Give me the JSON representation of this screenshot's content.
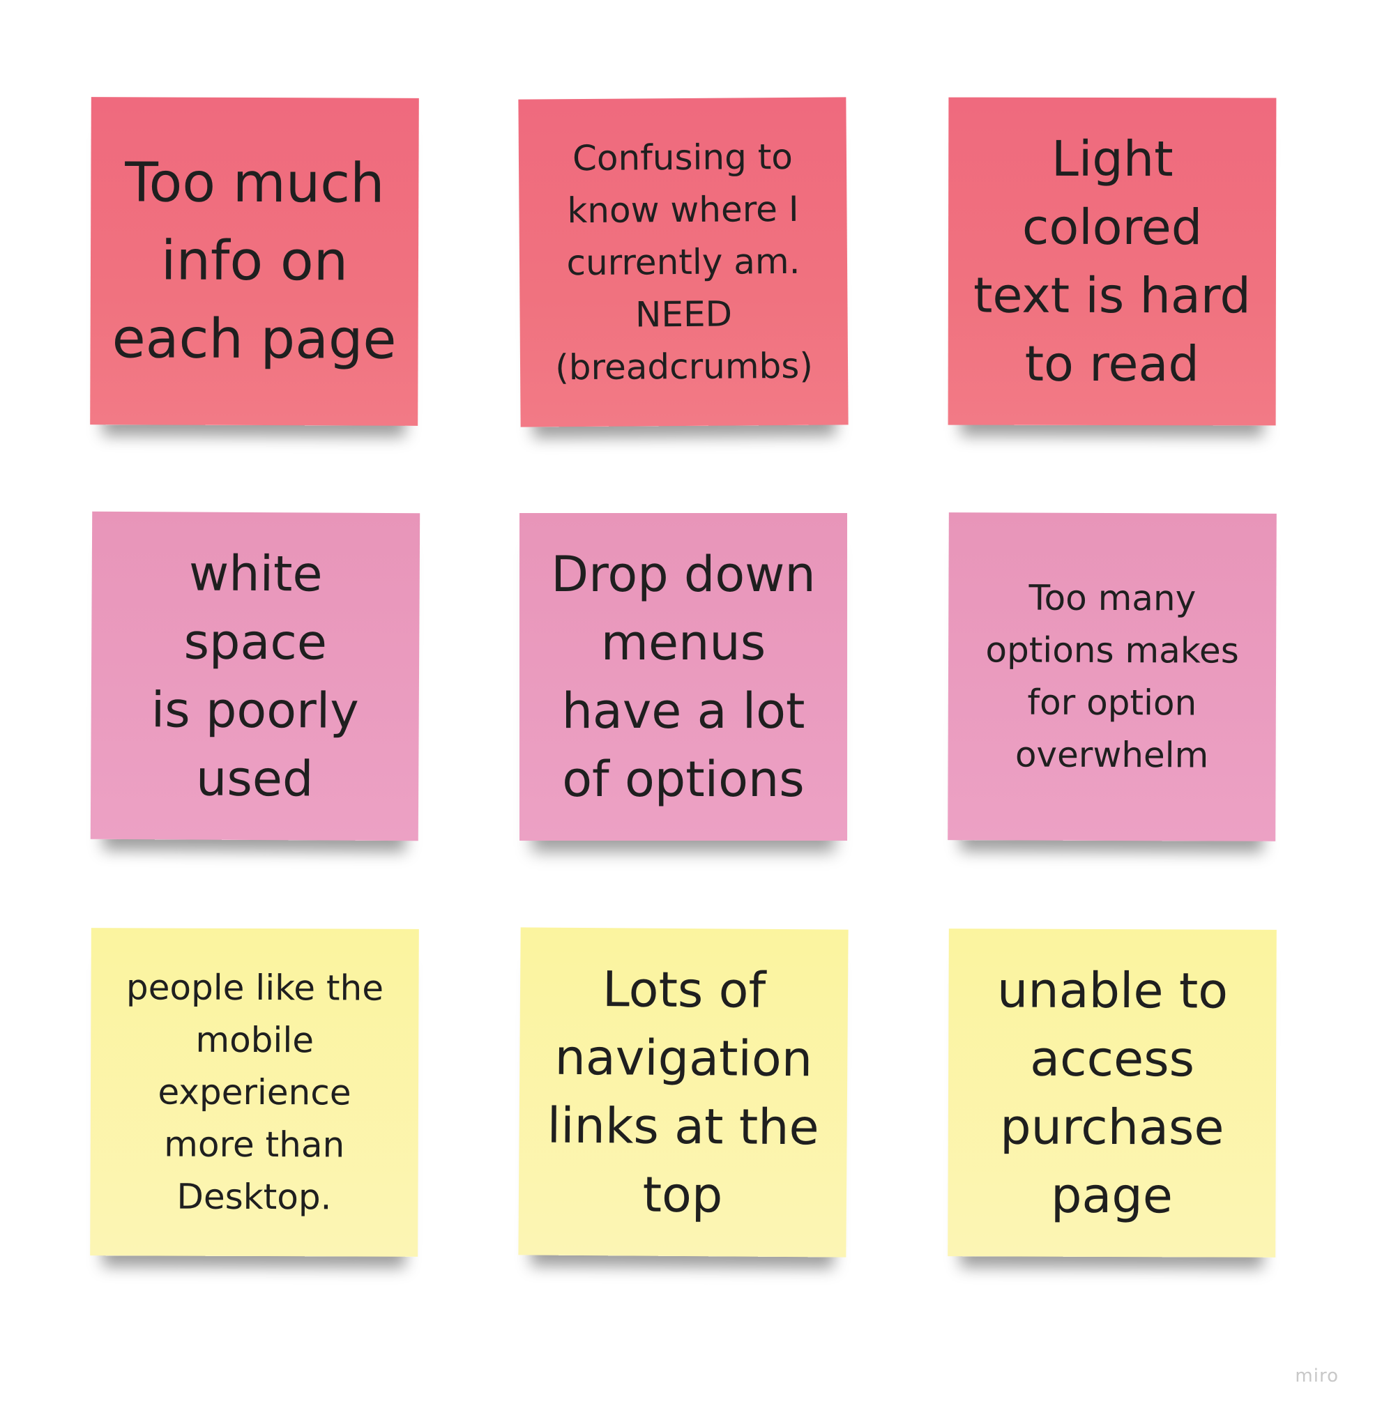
{
  "board": {
    "brand": "miro",
    "colors": {
      "red_pink": "#f0727f",
      "pink": "#eaa0c2",
      "yellow": "#fcf4ac"
    }
  },
  "notes": [
    {
      "text": "Too much\ninfo on\neach page",
      "color": "red_pink"
    },
    {
      "text": "Confusing to\nknow where I\ncurrently am.\nNEED\n(breadcrumbs)",
      "color": "red_pink"
    },
    {
      "text": "Light\ncolored\ntext is hard\nto read",
      "color": "red_pink"
    },
    {
      "text": "white space\nis poorly\nused",
      "color": "pink"
    },
    {
      "text": "Drop down\nmenus\nhave a lot\nof options",
      "color": "pink"
    },
    {
      "text": "Too many\noptions makes\nfor option\noverwhelm",
      "color": "pink"
    },
    {
      "text": "people like the\nmobile\nexperience\nmore than\nDesktop.",
      "color": "yellow"
    },
    {
      "text": "Lots of\nnavigation\nlinks at the\ntop",
      "color": "yellow"
    },
    {
      "text": "unable to\naccess\npurchase\npage",
      "color": "yellow"
    }
  ]
}
